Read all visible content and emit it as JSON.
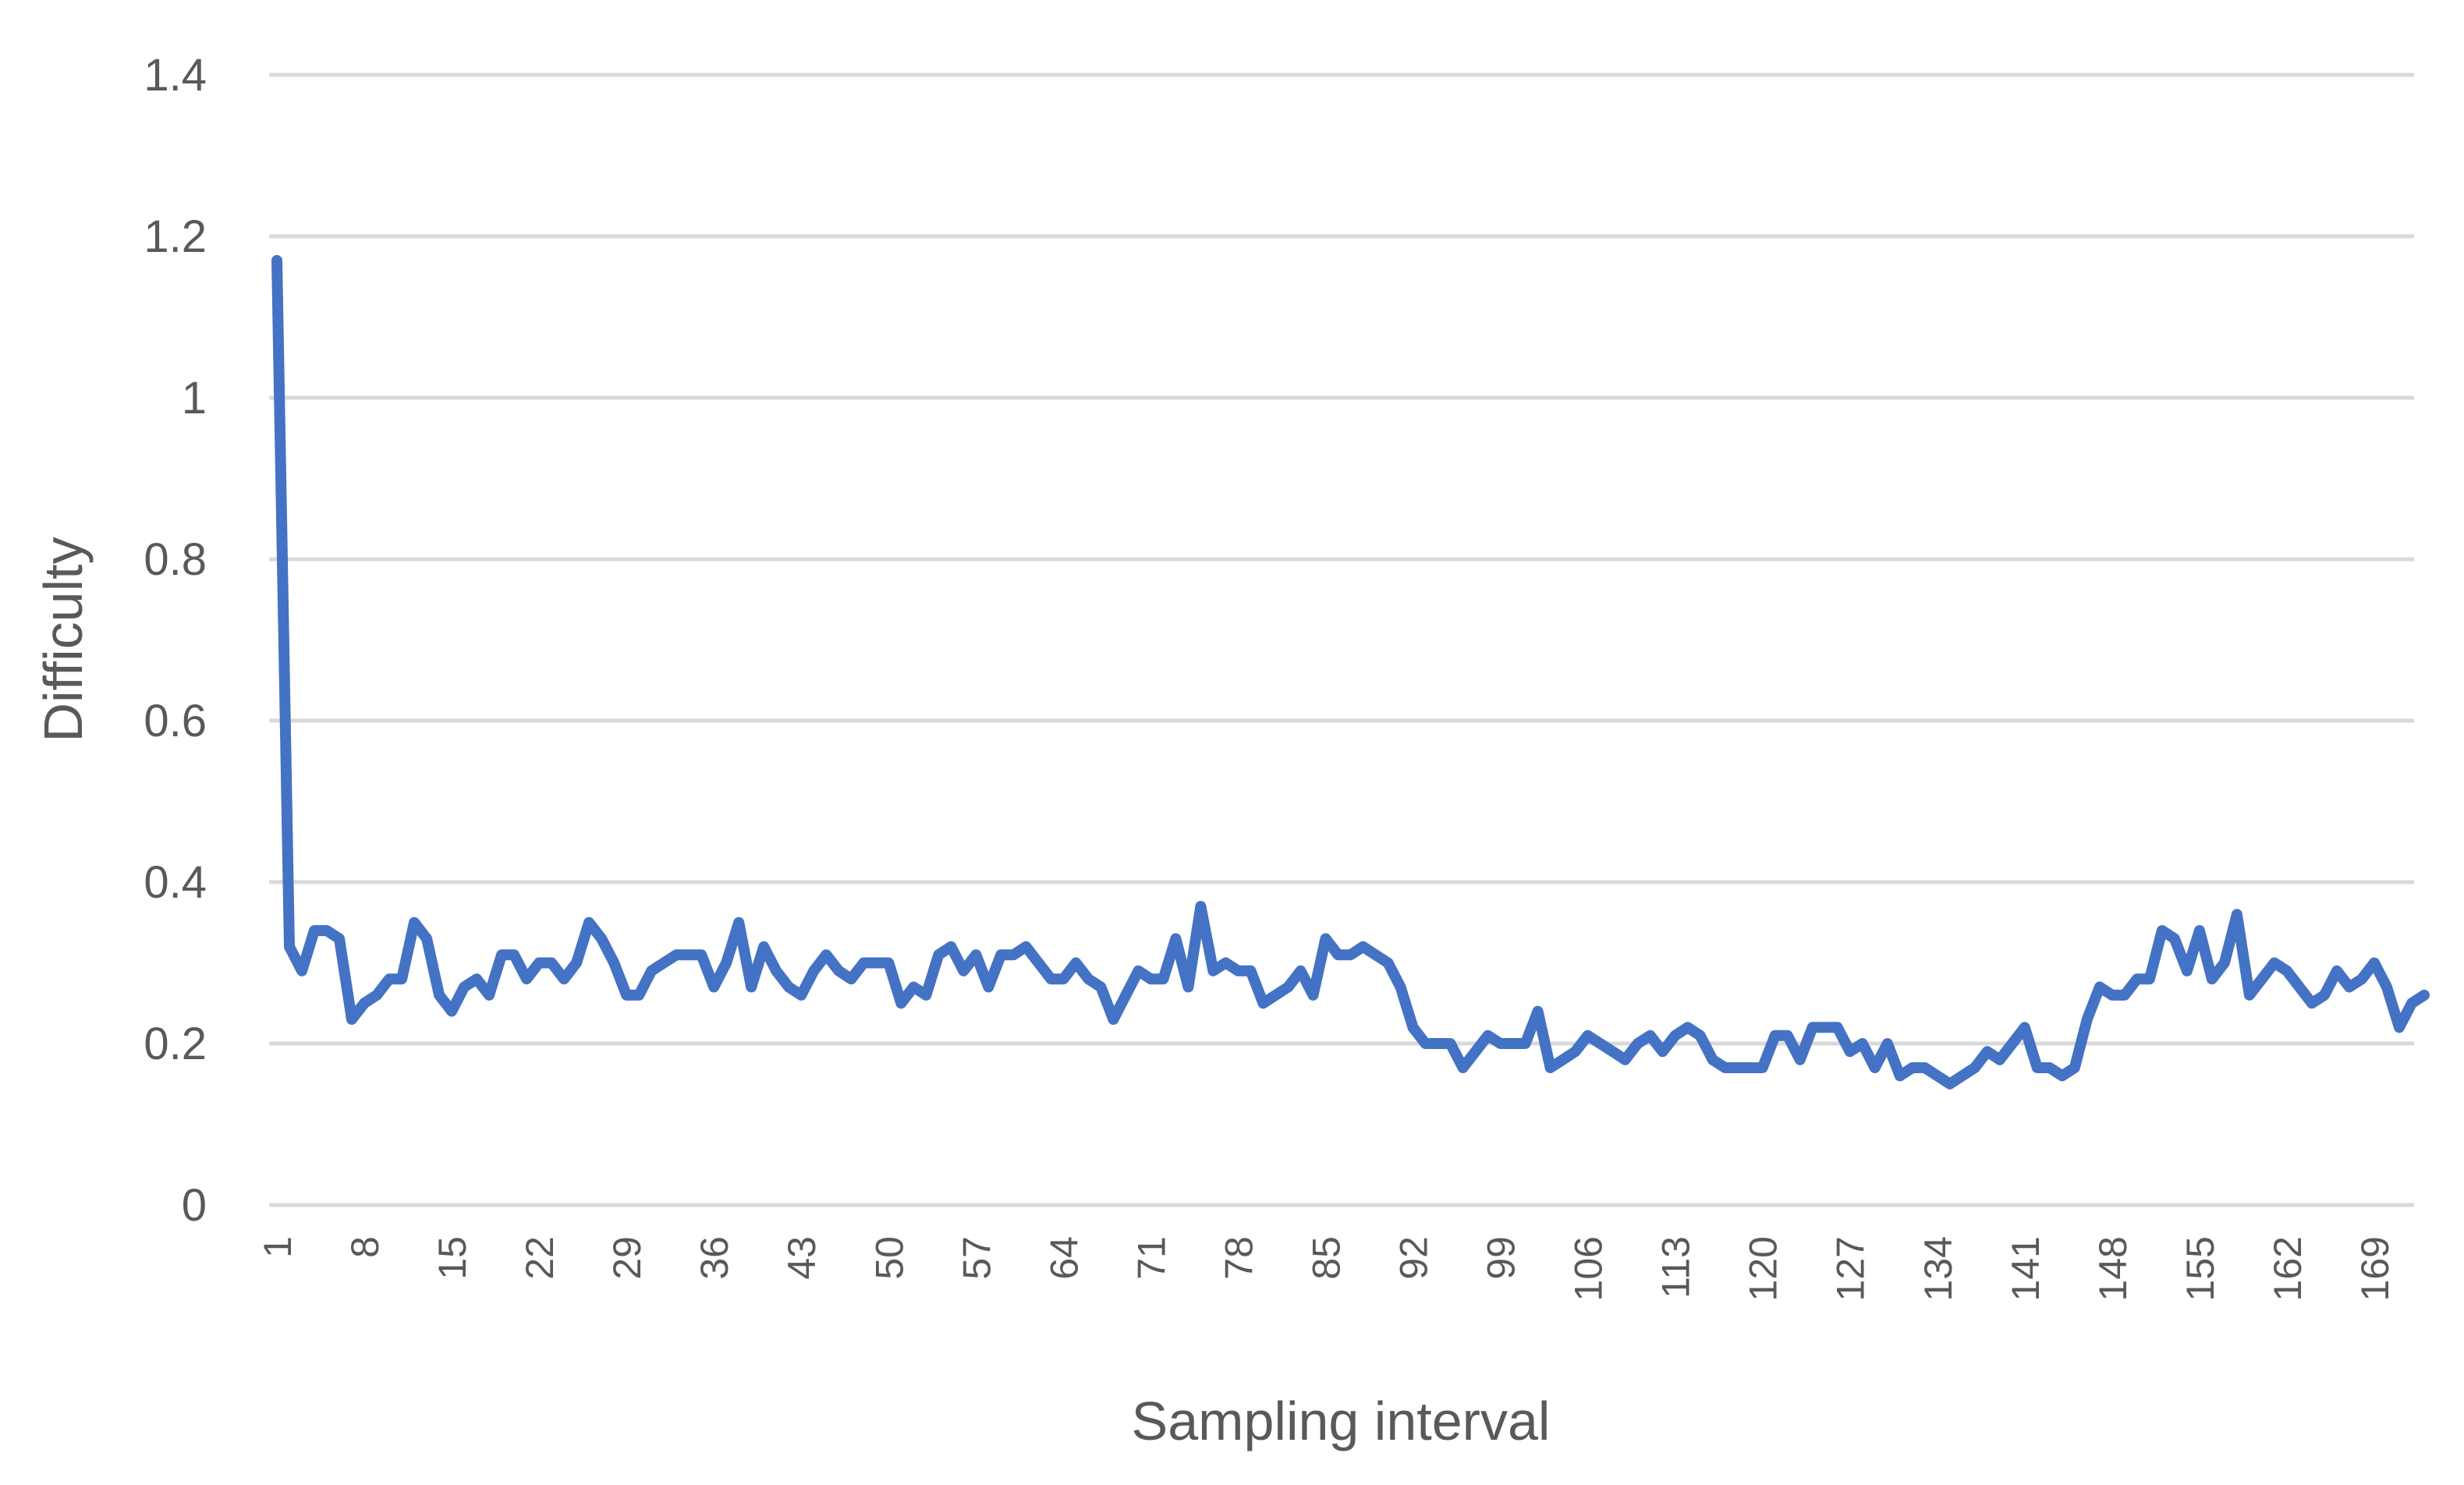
{
  "chart_data": {
    "type": "line",
    "title": "",
    "xlabel": "Sampling interval",
    "ylabel": "Difficulty",
    "ylim": [
      0,
      1.4
    ],
    "yticks": [
      "0",
      "0.2",
      "0.4",
      "0.6",
      "0.8",
      "1",
      "1.2",
      "1.4"
    ],
    "xticks": [
      1,
      8,
      15,
      22,
      29,
      36,
      43,
      50,
      57,
      64,
      71,
      78,
      85,
      92,
      99,
      106,
      113,
      120,
      127,
      134,
      141,
      148,
      155,
      162,
      169
    ],
    "xlim": [
      1,
      172
    ],
    "grid": true,
    "legend": "none",
    "colors": {
      "line": "#4472c4",
      "grid": "#d9d9d9",
      "text": "#595959"
    },
    "series": [
      {
        "values": [
          1.17,
          0.32,
          0.29,
          0.34,
          0.34,
          0.33,
          0.23,
          0.25,
          0.26,
          0.28,
          0.28,
          0.35,
          0.33,
          0.26,
          0.24,
          0.27,
          0.28,
          0.26,
          0.31,
          0.31,
          0.28,
          0.3,
          0.3,
          0.28,
          0.3,
          0.35,
          0.33,
          0.3,
          0.26,
          0.26,
          0.29,
          0.3,
          0.31,
          0.31,
          0.31,
          0.27,
          0.3,
          0.35,
          0.27,
          0.32,
          0.29,
          0.27,
          0.26,
          0.29,
          0.31,
          0.29,
          0.28,
          0.3,
          0.3,
          0.3,
          0.25,
          0.27,
          0.26,
          0.31,
          0.32,
          0.29,
          0.31,
          0.27,
          0.31,
          0.31,
          0.32,
          0.3,
          0.28,
          0.28,
          0.3,
          0.28,
          0.27,
          0.23,
          0.26,
          0.29,
          0.28,
          0.28,
          0.33,
          0.27,
          0.37,
          0.29,
          0.3,
          0.29,
          0.29,
          0.25,
          0.26,
          0.27,
          0.29,
          0.26,
          0.33,
          0.31,
          0.31,
          0.32,
          0.31,
          0.3,
          0.27,
          0.22,
          0.2,
          0.2,
          0.2,
          0.17,
          0.19,
          0.21,
          0.2,
          0.2,
          0.2,
          0.24,
          0.17,
          0.18,
          0.19,
          0.21,
          0.2,
          0.19,
          0.18,
          0.2,
          0.21,
          0.19,
          0.21,
          0.22,
          0.21,
          0.18,
          0.17,
          0.17,
          0.17,
          0.17,
          0.21,
          0.21,
          0.18,
          0.22,
          0.22,
          0.22,
          0.19,
          0.2,
          0.17,
          0.2,
          0.16,
          0.17,
          0.17,
          0.16,
          0.15,
          0.16,
          0.17,
          0.19,
          0.18,
          0.2,
          0.22,
          0.17,
          0.17,
          0.16,
          0.17,
          0.23,
          0.27,
          0.26,
          0.26,
          0.28,
          0.28,
          0.34,
          0.33,
          0.29,
          0.34,
          0.28,
          0.3,
          0.36,
          0.26,
          0.28,
          0.3,
          0.29,
          0.27,
          0.25,
          0.26,
          0.29,
          0.27,
          0.28,
          0.3,
          0.27,
          0.22,
          0.25,
          0.26
        ]
      }
    ]
  }
}
